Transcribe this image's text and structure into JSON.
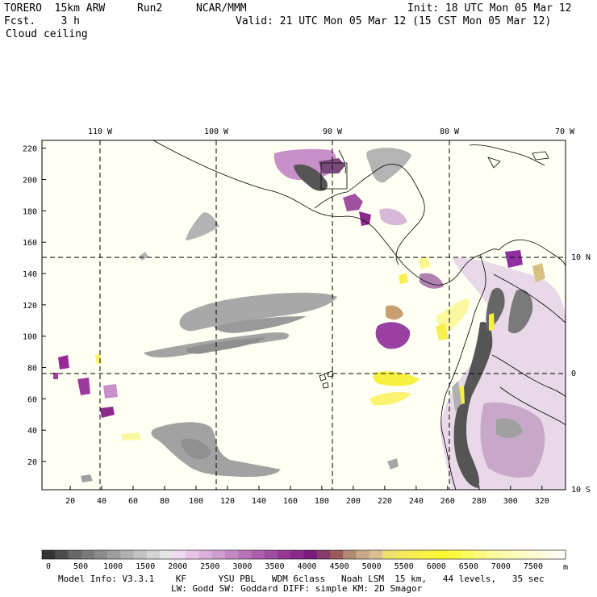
{
  "header": {
    "model": "TORERO  15km ARW",
    "run": "Run2",
    "org": "NCAR/MMM",
    "init": "Init: 18 UTC Mon 05 Mar 12",
    "fcst": "Fcst.    3 h",
    "valid": "Valid: 21 UTC Mon 05 Mar 12 (15 CST Mon 05 Mar 12)",
    "field": "Cloud ceiling"
  },
  "map": {
    "lon_labels": [
      "110 W",
      "100 W",
      "90 W",
      "80 W",
      "70 W"
    ],
    "lat_labels": [
      "10 N",
      "0",
      "10 S"
    ],
    "y_ticks": [
      "20",
      "40",
      "60",
      "80",
      "100",
      "120",
      "140",
      "160",
      "180",
      "200",
      "220"
    ],
    "x_ticks": [
      "20",
      "40",
      "60",
      "80",
      "100",
      "120",
      "140",
      "160",
      "180",
      "200",
      "220",
      "240",
      "260",
      "280",
      "300",
      "320"
    ],
    "background": "#fffff4"
  },
  "colorbar": {
    "unit": "m",
    "labels": [
      "0",
      "500",
      "1000",
      "1500",
      "2000",
      "2500",
      "3000",
      "3500",
      "4000",
      "4500",
      "5000",
      "5500",
      "6000",
      "6500",
      "7000",
      "7500"
    ],
    "colors": [
      "#333333",
      "#4d4d4d",
      "#666666",
      "#7a7a7a",
      "#8c8c8c",
      "#9e9e9e",
      "#b0b0b0",
      "#c2c2c2",
      "#d4d4d4",
      "#e6e6e6",
      "#f0d8f0",
      "#e8c4e8",
      "#dcb0dc",
      "#d09cd0",
      "#c488c4",
      "#b874b8",
      "#ac60ac",
      "#a04ca0",
      "#943894",
      "#8a2a8a",
      "#7a1a7a",
      "#8a3a6a",
      "#9a5a5a",
      "#b08a70",
      "#c8a888",
      "#d8c090",
      "#f0e070",
      "#f4e860",
      "#f8ee50",
      "#fcf440",
      "#fff830",
      "#fffa40",
      "#fffb60",
      "#fffb80",
      "#fffca0",
      "#fffcb0",
      "#fffdc0",
      "#fffdd0",
      "#fffee0",
      "#fffef0"
    ]
  },
  "footer": {
    "line1": "Model Info: V3.3.1    KF      YSU PBL   WDM 6class   Noah LSM  15 km,   44 levels,   35 sec",
    "line2": "LW: Godd SW: Goddard DIFF: simple KM: 2D Smagor"
  }
}
